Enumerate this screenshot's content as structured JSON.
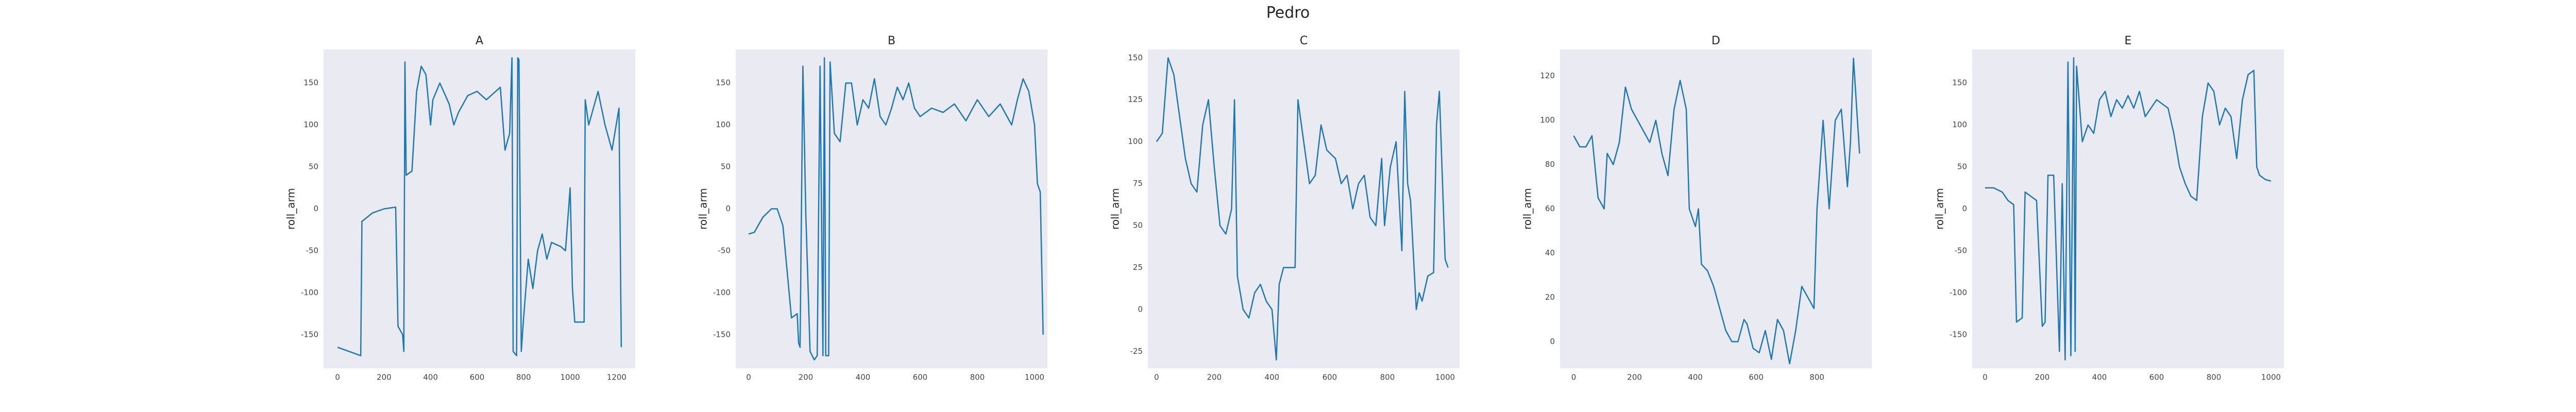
{
  "title": "Pedro",
  "chart_data": [
    {
      "type": "line",
      "title": "A",
      "y_label": "roll_arm",
      "color": "#1f77b4",
      "grid": false,
      "xlim": [
        -60,
        1280
      ],
      "ylim": [
        -190,
        190
      ],
      "xticks": [
        0,
        200,
        400,
        600,
        800,
        1000,
        1200
      ],
      "yticks": [
        -150,
        -100,
        -50,
        0,
        50,
        100,
        150
      ],
      "x": [
        0,
        50,
        100,
        105,
        150,
        200,
        250,
        260,
        280,
        285,
        290,
        295,
        320,
        340,
        360,
        380,
        400,
        410,
        440,
        480,
        500,
        520,
        560,
        600,
        640,
        680,
        700,
        720,
        740,
        750,
        755,
        770,
        775,
        780,
        790,
        800,
        820,
        840,
        860,
        880,
        900,
        920,
        960,
        980,
        1000,
        1010,
        1020,
        1060,
        1065,
        1080,
        1120,
        1150,
        1180,
        1210,
        1220
      ],
      "values": [
        -165,
        -170,
        -175,
        -15,
        -5,
        0,
        2,
        -140,
        -150,
        -170,
        175,
        40,
        45,
        140,
        170,
        160,
        100,
        130,
        150,
        125,
        100,
        115,
        135,
        140,
        130,
        140,
        145,
        70,
        90,
        180,
        -170,
        -175,
        180,
        178,
        -170,
        -130,
        -60,
        -95,
        -50,
        -30,
        -60,
        -40,
        -45,
        -50,
        25,
        -95,
        -135,
        -135,
        130,
        100,
        140,
        100,
        70,
        120,
        -165
      ]
    },
    {
      "type": "line",
      "title": "B",
      "y_label": "roll_arm",
      "color": "#1f77b4",
      "grid": false,
      "xlim": [
        -45,
        1045
      ],
      "ylim": [
        -190,
        190
      ],
      "xticks": [
        0,
        200,
        400,
        600,
        800,
        1000
      ],
      "yticks": [
        -150,
        -100,
        -50,
        0,
        50,
        100,
        150
      ],
      "x": [
        0,
        20,
        50,
        80,
        100,
        120,
        150,
        170,
        175,
        180,
        190,
        200,
        215,
        230,
        240,
        250,
        260,
        265,
        270,
        280,
        285,
        300,
        320,
        340,
        360,
        380,
        400,
        420,
        440,
        460,
        480,
        500,
        520,
        540,
        560,
        580,
        600,
        640,
        680,
        720,
        760,
        800,
        840,
        880,
        920,
        940,
        960,
        980,
        1000,
        1010,
        1020,
        1030
      ],
      "values": [
        -30,
        -28,
        -10,
        0,
        0,
        -20,
        -130,
        -125,
        -160,
        -165,
        170,
        -5,
        -170,
        -180,
        -175,
        170,
        -175,
        180,
        -175,
        -175,
        175,
        90,
        80,
        150,
        150,
        100,
        130,
        120,
        155,
        110,
        100,
        120,
        145,
        130,
        150,
        120,
        110,
        120,
        115,
        125,
        105,
        130,
        110,
        125,
        100,
        130,
        155,
        140,
        100,
        30,
        20,
        -150
      ]
    },
    {
      "type": "line",
      "title": "C",
      "y_label": "roll_arm",
      "color": "#1f77b4",
      "grid": false,
      "xlim": [
        -30,
        1050
      ],
      "ylim": [
        -35,
        155
      ],
      "xticks": [
        0,
        200,
        400,
        600,
        800,
        1000
      ],
      "yticks": [
        -25,
        0,
        25,
        50,
        75,
        100,
        125,
        150
      ],
      "x": [
        0,
        20,
        40,
        60,
        80,
        100,
        120,
        140,
        160,
        180,
        200,
        220,
        240,
        260,
        270,
        280,
        300,
        320,
        340,
        360,
        380,
        400,
        415,
        425,
        440,
        460,
        480,
        490,
        510,
        530,
        550,
        570,
        590,
        620,
        640,
        660,
        680,
        700,
        720,
        740,
        760,
        780,
        790,
        810,
        830,
        850,
        860,
        870,
        880,
        900,
        910,
        920,
        940,
        960,
        970,
        980,
        990,
        1000,
        1010
      ],
      "values": [
        100,
        105,
        150,
        140,
        115,
        90,
        75,
        70,
        110,
        125,
        85,
        50,
        45,
        60,
        125,
        20,
        0,
        -5,
        10,
        15,
        5,
        0,
        -30,
        15,
        25,
        25,
        25,
        125,
        100,
        75,
        80,
        110,
        95,
        90,
        75,
        80,
        60,
        75,
        80,
        55,
        50,
        90,
        50,
        85,
        100,
        35,
        130,
        75,
        65,
        0,
        10,
        5,
        20,
        22,
        110,
        130,
        80,
        30,
        25
      ]
    },
    {
      "type": "line",
      "title": "D",
      "y_label": "roll_arm",
      "color": "#1f77b4",
      "grid": false,
      "xlim": [
        -45,
        980
      ],
      "ylim": [
        -12,
        132
      ],
      "xticks": [
        0,
        200,
        400,
        600,
        800
      ],
      "yticks": [
        0,
        20,
        40,
        60,
        80,
        100,
        120
      ],
      "x": [
        0,
        20,
        40,
        60,
        80,
        100,
        110,
        130,
        150,
        170,
        190,
        210,
        230,
        250,
        270,
        290,
        310,
        330,
        350,
        370,
        380,
        400,
        410,
        420,
        440,
        460,
        480,
        500,
        520,
        540,
        560,
        570,
        590,
        610,
        630,
        650,
        670,
        690,
        710,
        730,
        750,
        770,
        790,
        800,
        820,
        830,
        840,
        860,
        880,
        900,
        910,
        920,
        940
      ],
      "values": [
        93,
        88,
        88,
        93,
        65,
        60,
        85,
        80,
        90,
        115,
        105,
        100,
        95,
        90,
        100,
        85,
        75,
        105,
        118,
        105,
        60,
        52,
        60,
        35,
        32,
        25,
        15,
        5,
        0,
        0,
        10,
        8,
        -3,
        -5,
        5,
        -8,
        10,
        5,
        -10,
        5,
        25,
        20,
        15,
        60,
        100,
        80,
        60,
        100,
        105,
        70,
        90,
        128,
        85
      ]
    },
    {
      "type": "line",
      "title": "E",
      "y_label": "roll_arm",
      "color": "#1f77b4",
      "grid": false,
      "xlim": [
        -45,
        1045
      ],
      "ylim": [
        -190,
        190
      ],
      "xticks": [
        0,
        200,
        400,
        600,
        800,
        1000
      ],
      "yticks": [
        -150,
        -100,
        -50,
        0,
        50,
        100,
        150
      ],
      "x": [
        0,
        30,
        60,
        80,
        100,
        110,
        130,
        140,
        160,
        180,
        200,
        210,
        220,
        240,
        260,
        270,
        280,
        290,
        300,
        310,
        315,
        320,
        340,
        360,
        380,
        400,
        420,
        440,
        460,
        480,
        500,
        520,
        540,
        560,
        600,
        640,
        660,
        680,
        700,
        720,
        740,
        760,
        780,
        800,
        820,
        840,
        860,
        880,
        900,
        920,
        940,
        950,
        960,
        980,
        1000
      ],
      "values": [
        25,
        25,
        20,
        10,
        5,
        -135,
        -130,
        20,
        15,
        10,
        -140,
        -135,
        40,
        40,
        -170,
        30,
        -180,
        175,
        -175,
        180,
        -170,
        170,
        80,
        100,
        90,
        130,
        140,
        110,
        130,
        120,
        135,
        120,
        140,
        110,
        130,
        120,
        90,
        50,
        30,
        15,
        10,
        110,
        150,
        140,
        100,
        120,
        110,
        60,
        130,
        160,
        165,
        50,
        40,
        35,
        33
      ]
    }
  ]
}
